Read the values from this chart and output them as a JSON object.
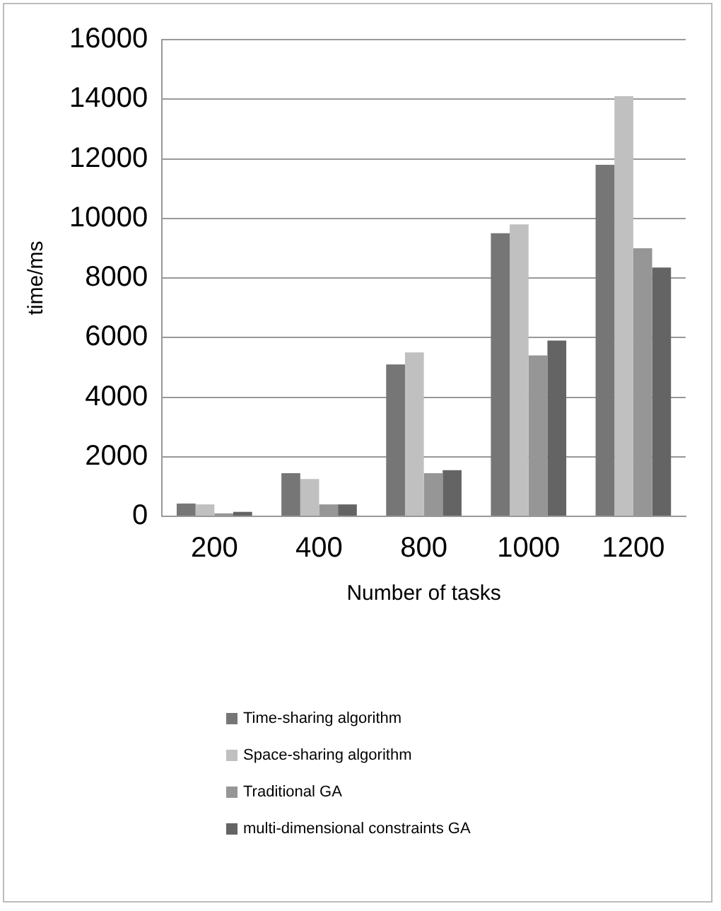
{
  "chart_data": {
    "type": "bar",
    "xlabel": "Number of tasks",
    "ylabel": "time/ms",
    "categories": [
      "200",
      "400",
      "800",
      "1000",
      "1200"
    ],
    "series": [
      {
        "name": "Time-sharing algorithm",
        "color": "#767676",
        "values": [
          430,
          1450,
          5100,
          9500,
          11800
        ]
      },
      {
        "name": "Space-sharing algorithm",
        "color": "#c0c0c0",
        "values": [
          400,
          1250,
          5500,
          9800,
          14100
        ]
      },
      {
        "name": "Traditional GA",
        "color": "#969696",
        "values": [
          100,
          400,
          1450,
          5400,
          9000
        ]
      },
      {
        "name": "multi-dimensional constraints GA",
        "color": "#646464",
        "values": [
          150,
          400,
          1550,
          5900,
          8350
        ]
      }
    ],
    "ylim": [
      0,
      16000
    ],
    "yticks": [
      0,
      2000,
      4000,
      6000,
      8000,
      10000,
      12000,
      14000,
      16000
    ],
    "grid": "y",
    "legend": "bottom"
  }
}
